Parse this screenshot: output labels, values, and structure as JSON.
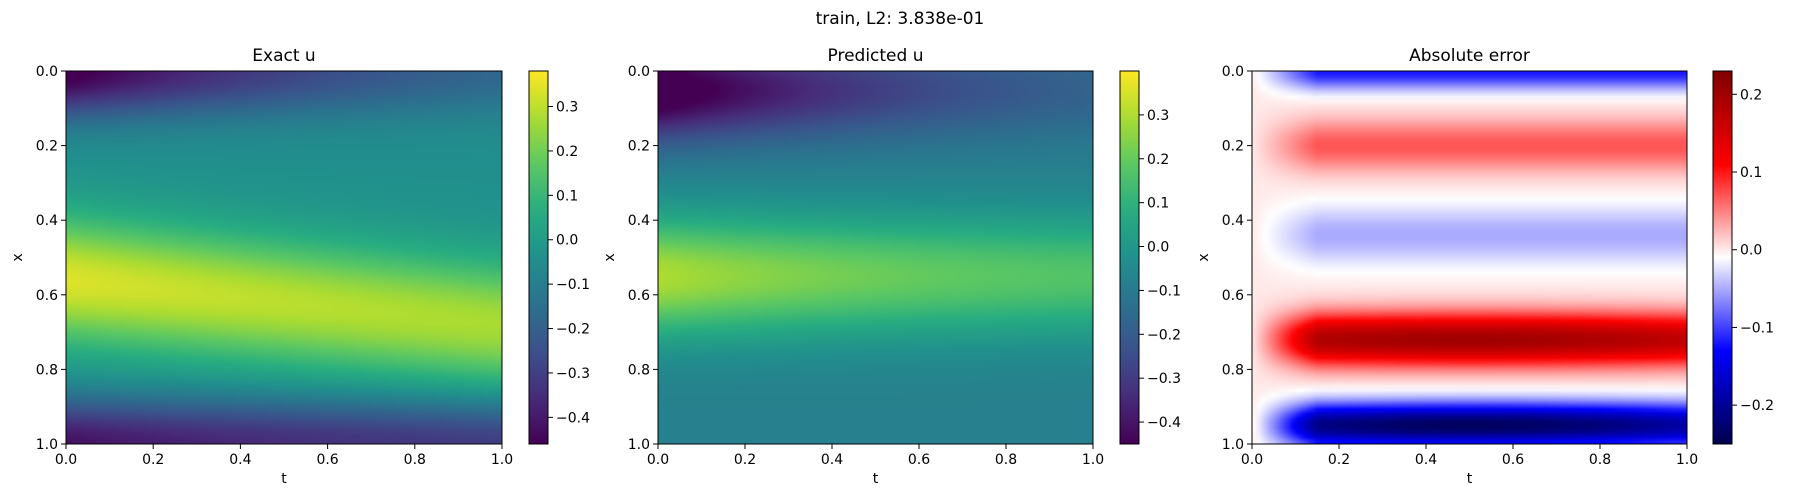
{
  "figure": {
    "suptitle": "train, L2: 3.838e-01"
  },
  "chart_data": [
    {
      "type": "heatmap",
      "title": "Exact u",
      "xlabel": "t",
      "ylabel": "x",
      "xlim": [
        0.0,
        1.0
      ],
      "ylim": [
        1.0,
        0.0
      ],
      "x_ticks": [
        "0.0",
        "0.2",
        "0.4",
        "0.6",
        "0.8",
        "1.0"
      ],
      "y_ticks": [
        "0.0",
        "0.2",
        "0.4",
        "0.6",
        "0.8",
        "1.0"
      ],
      "colormap": "viridis",
      "vmin": -0.46,
      "vmax": 0.38,
      "colorbar_ticks": [
        "0.3",
        "0.2",
        "0.1",
        "0.0",
        "−0.1",
        "−0.2",
        "−0.3",
        "−0.4"
      ],
      "colorbar_values": [
        0.3,
        0.2,
        0.1,
        0.0,
        -0.1,
        -0.2,
        -0.3,
        -0.4
      ],
      "grid": false
    },
    {
      "type": "heatmap",
      "title": "Predicted u",
      "xlabel": "t",
      "ylabel": "x",
      "xlim": [
        0.0,
        1.0
      ],
      "ylim": [
        1.0,
        0.0
      ],
      "x_ticks": [
        "0.0",
        "0.2",
        "0.4",
        "0.6",
        "0.8",
        "1.0"
      ],
      "y_ticks": [
        "0.0",
        "0.2",
        "0.4",
        "0.6",
        "0.8",
        "1.0"
      ],
      "colormap": "viridis",
      "vmin": -0.45,
      "vmax": 0.4,
      "colorbar_ticks": [
        "0.3",
        "0.2",
        "0.1",
        "0.0",
        "−0.1",
        "−0.2",
        "−0.3",
        "−0.4"
      ],
      "colorbar_values": [
        0.3,
        0.2,
        0.1,
        0.0,
        -0.1,
        -0.2,
        -0.3,
        -0.4
      ],
      "grid": false
    },
    {
      "type": "heatmap",
      "title": "Absolute error",
      "xlabel": "t",
      "ylabel": "x",
      "xlim": [
        0.0,
        1.0
      ],
      "ylim": [
        1.0,
        0.0
      ],
      "x_ticks": [
        "0.0",
        "0.2",
        "0.4",
        "0.6",
        "0.8",
        "1.0"
      ],
      "y_ticks": [
        "0.0",
        "0.2",
        "0.4",
        "0.6",
        "0.8",
        "1.0"
      ],
      "colormap": "seismic",
      "vmin": -0.25,
      "vmax": 0.23,
      "colorbar_ticks": [
        "0.2",
        "0.1",
        "0.0",
        "−0.1",
        "−0.2"
      ],
      "colorbar_values": [
        0.2,
        0.1,
        0.0,
        -0.1,
        -0.2
      ],
      "grid": false
    }
  ]
}
